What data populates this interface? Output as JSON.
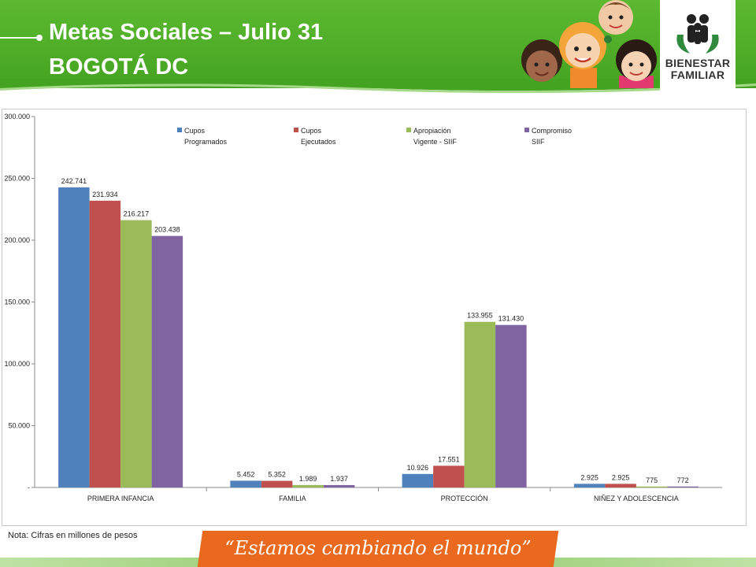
{
  "header": {
    "title_line1": "Metas Sociales – Julio 31",
    "title_line2": "BOGOTÁ DC",
    "logo_line1": "BIENESTAR",
    "logo_line2": "FAMILIAR",
    "colors": {
      "green": "#4caf2a",
      "logo": "#2f8a3c"
    }
  },
  "chart_data": {
    "type": "bar",
    "categories": [
      "PRIMERA INFANCIA",
      "FAMILIA",
      "PROTECCIÓN",
      "NIÑEZ Y ADOLESCENCIA"
    ],
    "series": [
      {
        "name": "Cupos Programados",
        "legend_lines": [
          "Cupos",
          "Programados"
        ],
        "color": "#4f81bd",
        "values": [
          242741,
          5452,
          10926,
          2925
        ],
        "labels": [
          "242.741",
          "5.452",
          "10.926",
          "2.925"
        ]
      },
      {
        "name": "Cupos Ejecutados",
        "legend_lines": [
          "Cupos",
          "Ejecutados"
        ],
        "color": "#c0504d",
        "values": [
          231934,
          5352,
          17551,
          2925
        ],
        "labels": [
          "231.934",
          "5.352",
          "17.551",
          "2.925"
        ]
      },
      {
        "name": "Apropiación Vigente - SIIF",
        "legend_lines": [
          "Apropiación",
          "Vigente - SIIF"
        ],
        "color": "#9bbb59",
        "values": [
          216217,
          1989,
          133955,
          775
        ],
        "labels": [
          "216.217",
          "1.989",
          "133.955",
          "775"
        ]
      },
      {
        "name": "Compromiso SIIF",
        "legend_lines": [
          "Compromiso",
          "SIIF"
        ],
        "color": "#8064a2",
        "values": [
          203438,
          1937,
          131430,
          772
        ],
        "labels": [
          "203.438",
          "1.937",
          "131.430",
          "772"
        ]
      }
    ],
    "ylim": [
      0,
      300000
    ],
    "yticks": [
      0,
      50000,
      100000,
      150000,
      200000,
      250000,
      300000
    ],
    "ytick_labels": [
      "-",
      "50.000",
      "100.000",
      "150.000",
      "200.000",
      "250.000",
      "300.000"
    ],
    "legend_position": "top",
    "grid": false
  },
  "note": "Nota: Cifras en millones de pesos",
  "slogan": "“Estamos cambiando el mundo”"
}
